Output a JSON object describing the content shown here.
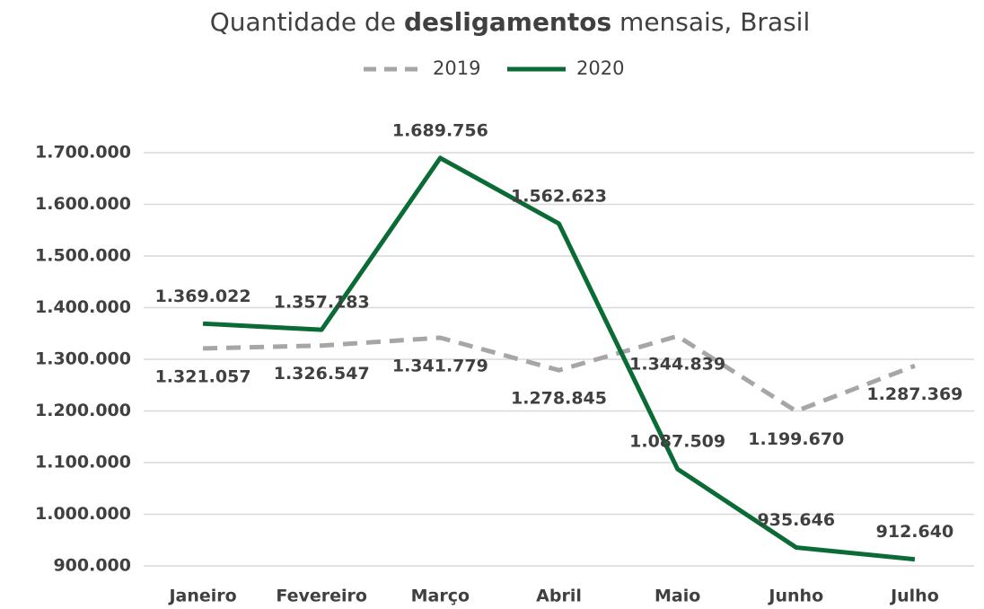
{
  "chart_data": {
    "type": "line",
    "title": [
      "Quantidade de ",
      "desligamentos",
      " mensais, Brasil"
    ],
    "categories": [
      "Janeiro",
      "Fevereiro",
      "Março",
      "Abril",
      "Maio",
      "Junho",
      "Julho"
    ],
    "series": [
      {
        "name": "2019",
        "color": "#a6a6a6",
        "dashed": true,
        "values": [
          1321057,
          1326547,
          1341779,
          1278845,
          1344839,
          1199670,
          1287369
        ],
        "value_labels": [
          "1.321.057",
          "1.326.547",
          "1.341.779",
          "1.278.845",
          "1.344.839",
          "1.199.670",
          "1.287.369"
        ]
      },
      {
        "name": "2020",
        "color": "#0b6b35",
        "dashed": false,
        "values": [
          1369022,
          1357183,
          1689756,
          1562623,
          1087509,
          935646,
          912640
        ],
        "value_labels": [
          "1.369.022",
          "1.357.183",
          "1.689.756",
          "1.562.623",
          "1.087.509",
          "935.646",
          "912.640"
        ]
      }
    ],
    "ylim": [
      900000,
      1700000
    ],
    "yticks": [
      {
        "value": 900000,
        "label": "900.000"
      },
      {
        "value": 1000000,
        "label": "1.000.000"
      },
      {
        "value": 1100000,
        "label": "1.100.000"
      },
      {
        "value": 1200000,
        "label": "1.200.000"
      },
      {
        "value": 1300000,
        "label": "1.300.000"
      },
      {
        "value": 1400000,
        "label": "1.400.000"
      },
      {
        "value": 1500000,
        "label": "1.500.000"
      },
      {
        "value": 1600000,
        "label": "1.600.000"
      },
      {
        "value": 1700000,
        "label": "1.700.000"
      }
    ],
    "grid": true,
    "legend": "top"
  }
}
